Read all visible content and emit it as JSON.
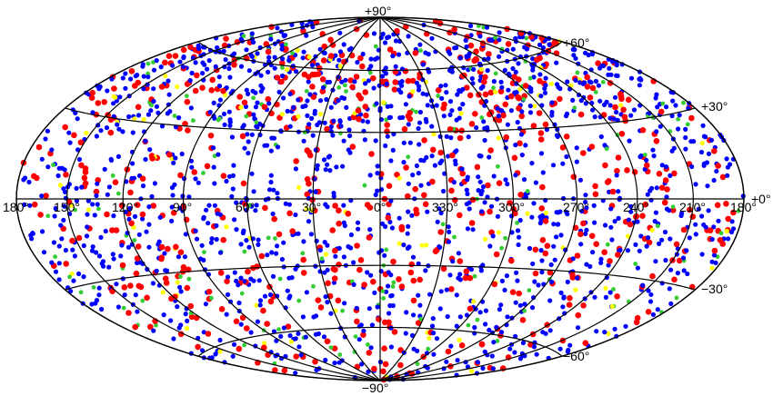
{
  "map": {
    "projection": "Aitoff-Hammer",
    "colors": {
      "red": "#ff0000",
      "blue": "#0000ff",
      "green": "#33cc33",
      "yellow": "#ffff00"
    },
    "longitude_labels": [
      "180°",
      "150°",
      "120°",
      "90°",
      "60°",
      "30°",
      "0°",
      "330°",
      "300°",
      "270°",
      "240°",
      "210°",
      "180°"
    ],
    "latitude_labels": {
      "north_pole": "+90°",
      "south_pole": "−90°",
      "p60": "+60°",
      "p30": "+30°",
      "zero": "+0°",
      "m30": "−30°",
      "m60": "−60°"
    },
    "point_counts": {
      "blue": 1500,
      "red": 650,
      "green": 160,
      "yellow": 90
    }
  }
}
